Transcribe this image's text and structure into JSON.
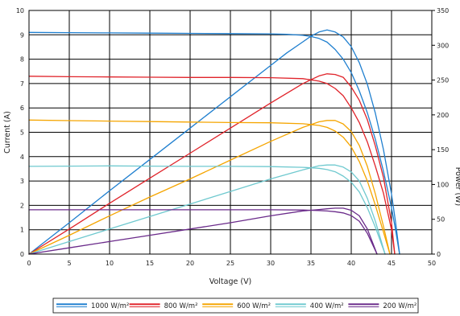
{
  "chart_data": {
    "type": "line",
    "xlabel": "Voltage (V)",
    "ylabel": "Current (A)",
    "y2label": "Power (W)",
    "xlim": [
      0,
      50
    ],
    "ylim": [
      0,
      10
    ],
    "y2lim": [
      0,
      350
    ],
    "x_ticks": [
      "0",
      "5",
      "10",
      "15",
      "20",
      "25",
      "30",
      "35",
      "40",
      "45",
      "50"
    ],
    "y_ticks": [
      "0",
      "1",
      "2",
      "3",
      "4",
      "5",
      "6",
      "7",
      "8",
      "9",
      "10"
    ],
    "y2_ticks": [
      "0",
      "50",
      "100",
      "150",
      "200",
      "250",
      "300",
      "350"
    ],
    "grid": true,
    "legend_position": "bottom",
    "series": [
      {
        "name": "1000 W/m²",
        "color": "#1f7fcf",
        "current": {
          "x": [
            0,
            5,
            10,
            15,
            20,
            25,
            30,
            32,
            34,
            35,
            36,
            37,
            38,
            39,
            40,
            41,
            42,
            43,
            44,
            45,
            45.5,
            46
          ],
          "y": [
            9.1,
            9.09,
            9.08,
            9.07,
            9.06,
            9.05,
            9.04,
            9.02,
            8.98,
            8.93,
            8.85,
            8.7,
            8.4,
            8.0,
            7.45,
            6.7,
            5.8,
            4.7,
            3.4,
            1.9,
            1.0,
            0
          ]
        },
        "power": {
          "x": [
            0,
            5,
            10,
            15,
            20,
            25,
            30,
            32,
            34,
            35,
            36,
            37,
            38,
            39,
            40,
            41,
            42,
            43,
            44,
            45,
            45.5,
            46
          ],
          "y": [
            0,
            45,
            91,
            136,
            181,
            226,
            271,
            289,
            305,
            313,
            319,
            322,
            319,
            312,
            298,
            275,
            244,
            202,
            150,
            86,
            46,
            0
          ]
        }
      },
      {
        "name": "800 W/m²",
        "color": "#e0232a",
        "current": {
          "x": [
            0,
            5,
            10,
            15,
            20,
            25,
            30,
            34,
            36,
            37,
            38,
            39,
            40,
            41,
            42,
            43,
            44,
            45,
            45.4
          ],
          "y": [
            7.3,
            7.28,
            7.27,
            7.26,
            7.25,
            7.25,
            7.24,
            7.2,
            7.1,
            7.0,
            6.8,
            6.5,
            6.0,
            5.4,
            4.6,
            3.6,
            2.5,
            1.0,
            0
          ]
        },
        "power": {
          "x": [
            0,
            5,
            10,
            15,
            20,
            25,
            30,
            34,
            36,
            37,
            38,
            39,
            40,
            41,
            42,
            43,
            44,
            45,
            45.4
          ],
          "y": [
            0,
            36,
            73,
            109,
            145,
            181,
            217,
            245,
            256,
            259,
            258,
            254,
            240,
            221,
            193,
            155,
            110,
            45,
            0
          ]
        }
      },
      {
        "name": "600 W/m²",
        "color": "#f5a500",
        "current": {
          "x": [
            0,
            5,
            10,
            15,
            20,
            25,
            30,
            34,
            36,
            37,
            38,
            39,
            40,
            41,
            42,
            43,
            44,
            44.8
          ],
          "y": [
            5.5,
            5.48,
            5.46,
            5.44,
            5.42,
            5.4,
            5.39,
            5.35,
            5.28,
            5.2,
            5.05,
            4.8,
            4.4,
            3.8,
            3.0,
            2.0,
            0.9,
            0
          ]
        },
        "power": {
          "x": [
            0,
            5,
            10,
            15,
            20,
            25,
            30,
            34,
            36,
            37,
            38,
            39,
            40,
            41,
            42,
            43,
            44,
            44.8
          ],
          "y": [
            0,
            27,
            55,
            82,
            108,
            135,
            162,
            182,
            190,
            192,
            192,
            187,
            176,
            156,
            126,
            86,
            40,
            0
          ]
        }
      },
      {
        "name": "400 W/m²",
        "color": "#6fc9cf",
        "current": {
          "x": [
            0,
            5,
            10,
            15,
            20,
            25,
            30,
            34,
            36,
            37,
            38,
            39,
            40,
            41,
            42,
            43,
            44.2
          ],
          "y": [
            3.6,
            3.61,
            3.62,
            3.61,
            3.6,
            3.6,
            3.59,
            3.56,
            3.52,
            3.47,
            3.38,
            3.2,
            2.95,
            2.55,
            1.9,
            1.1,
            0
          ]
        },
        "power": {
          "x": [
            0,
            5,
            10,
            15,
            20,
            25,
            30,
            34,
            36,
            37,
            38,
            39,
            40,
            41,
            42,
            43,
            44.2
          ],
          "y": [
            0,
            18,
            36,
            54,
            72,
            90,
            108,
            121,
            127,
            128,
            128,
            125,
            118,
            105,
            80,
            47,
            0
          ]
        }
      },
      {
        "name": "200 W/m²",
        "color": "#6a2a8a",
        "current": {
          "x": [
            0,
            5,
            10,
            15,
            20,
            25,
            30,
            34,
            36,
            37,
            38,
            39,
            40,
            41,
            42,
            43.2
          ],
          "y": [
            1.82,
            1.82,
            1.82,
            1.82,
            1.82,
            1.82,
            1.82,
            1.81,
            1.79,
            1.77,
            1.74,
            1.69,
            1.58,
            1.35,
            0.85,
            0
          ]
        },
        "power": {
          "x": [
            0,
            5,
            10,
            15,
            20,
            25,
            30,
            34,
            36,
            37,
            38,
            39,
            40,
            41,
            42,
            43.2
          ],
          "y": [
            0,
            9,
            18,
            27,
            36,
            45,
            55,
            62,
            64,
            65,
            66,
            66,
            63,
            55,
            36,
            0
          ]
        }
      }
    ]
  }
}
